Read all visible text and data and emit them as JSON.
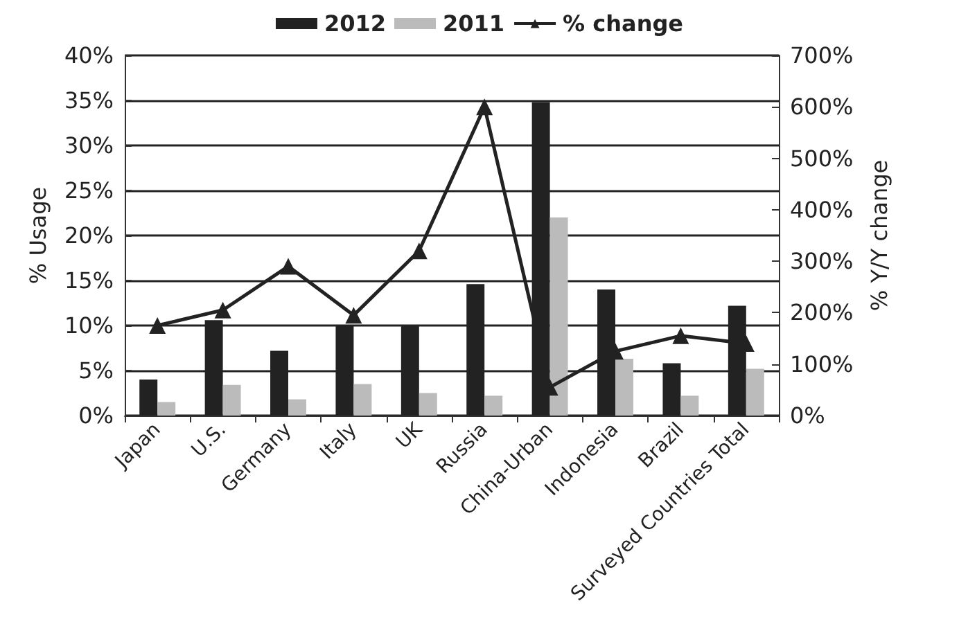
{
  "chart_data": {
    "type": "bar",
    "categories": [
      "Japan",
      "U.S.",
      "Germany",
      "Italy",
      "UK",
      "Russia",
      "China-Urban",
      "Indonesia",
      "Brazil",
      "Surveyed Countries Total"
    ],
    "series": [
      {
        "name": "2012",
        "color": "#222222",
        "values": [
          4.0,
          10.6,
          7.2,
          10.0,
          10.0,
          14.6,
          34.8,
          14.0,
          5.8,
          12.2
        ]
      },
      {
        "name": "2011",
        "color": "#bbbbbb",
        "values": [
          1.5,
          3.4,
          1.8,
          3.5,
          2.5,
          2.2,
          22.0,
          6.3,
          2.2,
          5.2
        ]
      },
      {
        "name": "% change",
        "type": "line",
        "axis": "y2",
        "color": "#222222",
        "values": [
          175,
          205,
          290,
          195,
          320,
          600,
          55,
          125,
          155,
          140
        ]
      }
    ],
    "ylabel": "% Usage",
    "y2label": "% Y/Y change",
    "ylim": [
      0,
      40
    ],
    "yticks": [
      {
        "value": 0,
        "label": "0%"
      },
      {
        "value": 5,
        "label": "5%"
      },
      {
        "value": 10,
        "label": "10%"
      },
      {
        "value": 15,
        "label": "15%"
      },
      {
        "value": 20,
        "label": "20%"
      },
      {
        "value": 25,
        "label": "25%"
      },
      {
        "value": 30,
        "label": "30%"
      },
      {
        "value": 35,
        "label": "35%"
      },
      {
        "value": 40,
        "label": "40%"
      }
    ],
    "y2lim": [
      0,
      700
    ],
    "y2ticks": [
      {
        "value": 0,
        "label": "0%"
      },
      {
        "value": 100,
        "label": "100%"
      },
      {
        "value": 200,
        "label": "200%"
      },
      {
        "value": 300,
        "label": "300%"
      },
      {
        "value": 400,
        "label": "400%"
      },
      {
        "value": 500,
        "label": "500%"
      },
      {
        "value": 600,
        "label": "600%"
      },
      {
        "value": 700,
        "label": "700%"
      }
    ],
    "grid": "y",
    "legend": "top",
    "marker": "triangle",
    "line_style": "solid"
  }
}
